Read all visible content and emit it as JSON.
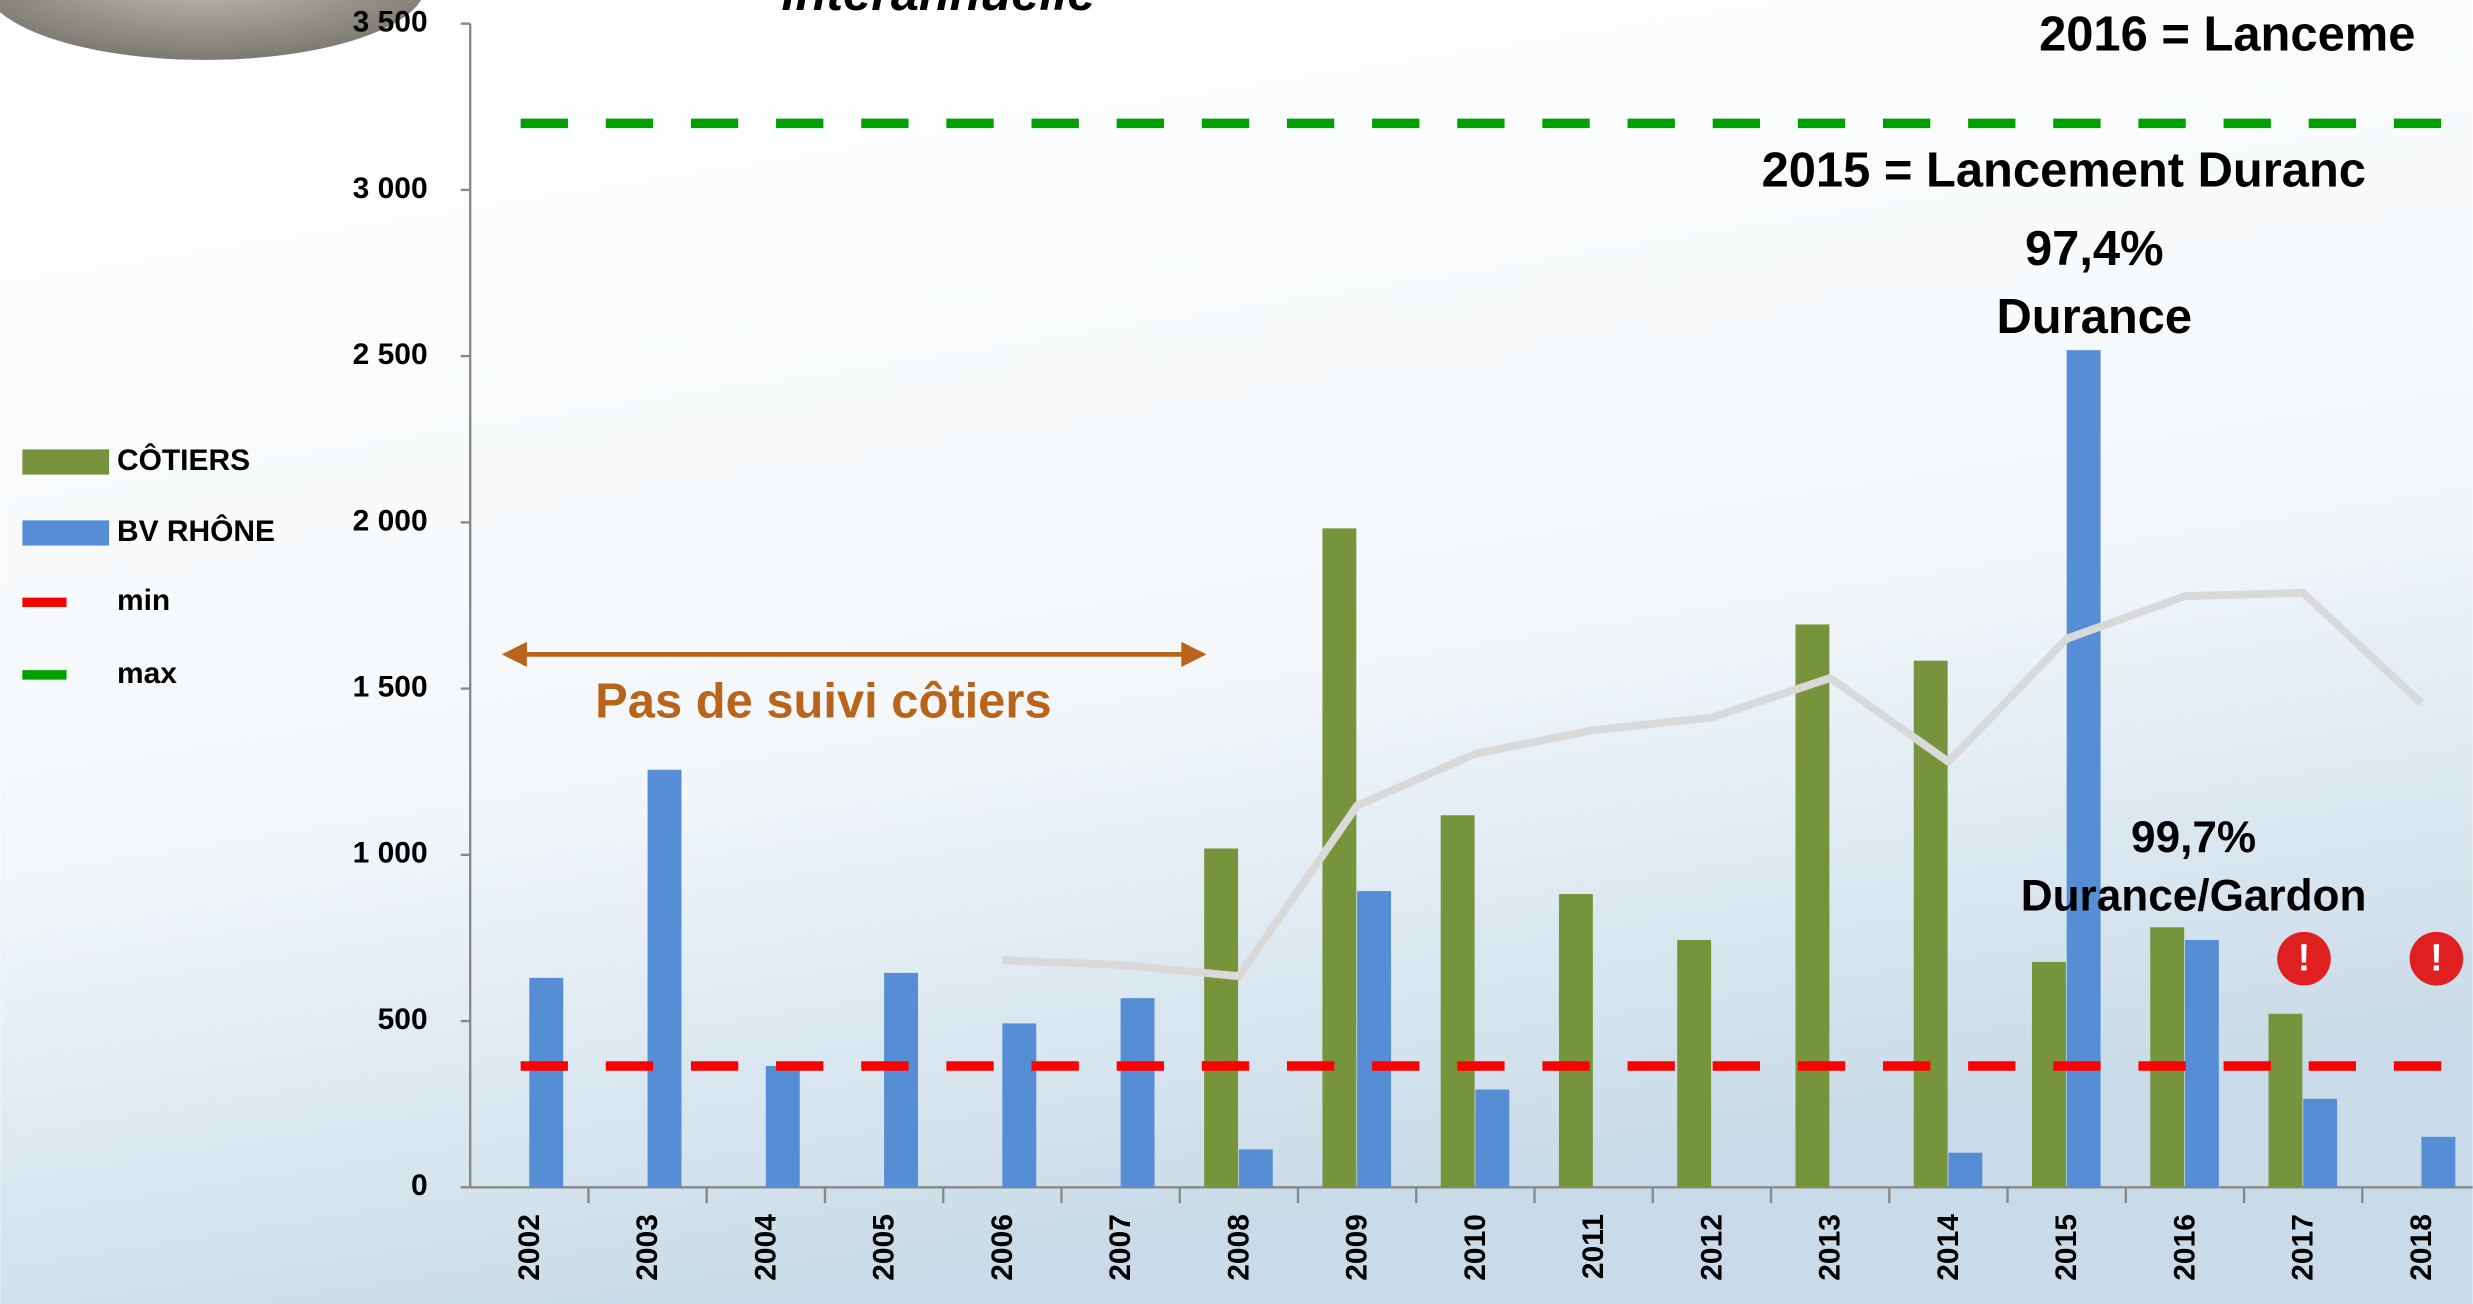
{
  "chart_data": {
    "type": "bar",
    "categories": [
      "2002",
      "2003",
      "2004",
      "2005",
      "2006",
      "2007",
      "2008",
      "2009",
      "2010",
      "2011",
      "2012",
      "2013",
      "2014",
      "2015",
      "2016",
      "2017",
      "2018"
    ],
    "series": [
      {
        "name": "CÔTIERS",
        "color": "#77933c",
        "values": [
          null,
          null,
          null,
          null,
          null,
          null,
          1019,
          1982,
          1119,
          882,
          744,
          1693,
          1584,
          678,
          782,
          522,
          null
        ]
      },
      {
        "name": "BV RHÔNE",
        "color": "#558ed5",
        "values": [
          630,
          1256,
          365,
          645,
          493,
          569,
          114,
          891,
          294,
          null,
          null,
          null,
          104,
          2518,
          744,
          266,
          152
        ]
      }
    ],
    "line": {
      "color": "#d9d9d9",
      "values": [
        null,
        null,
        null,
        null,
        683,
        669,
        635,
        1148,
        1304,
        1375,
        1413,
        1532,
        1280,
        1650,
        1778,
        1788,
        1456
      ]
    },
    "reference_lines": [
      {
        "name": "min",
        "color": "#ff0000",
        "value": 365
      },
      {
        "name": "max",
        "color": "#00a000",
        "value": 3200
      }
    ],
    "ylim": [
      0,
      3500
    ],
    "yticks": [
      0,
      500,
      {
        "value": 1000,
        "label": "1 000"
      },
      {
        "value": 1500,
        "label": "1 500"
      },
      {
        "value": 2000,
        "label": "2 000"
      },
      {
        "value": 2500,
        "label": "2 500"
      },
      {
        "value": 3000,
        "label": "3 000"
      },
      {
        "value": 3500,
        "label": "3 500"
      }
    ],
    "annotations": [
      "interannuelle",
      "2016 = Lanceme",
      "2015 = Lancement Duranc",
      "97,4%",
      "Durance",
      "Pas de suivi côtiers",
      "99,7%",
      "Durance/Gardon"
    ]
  }
}
